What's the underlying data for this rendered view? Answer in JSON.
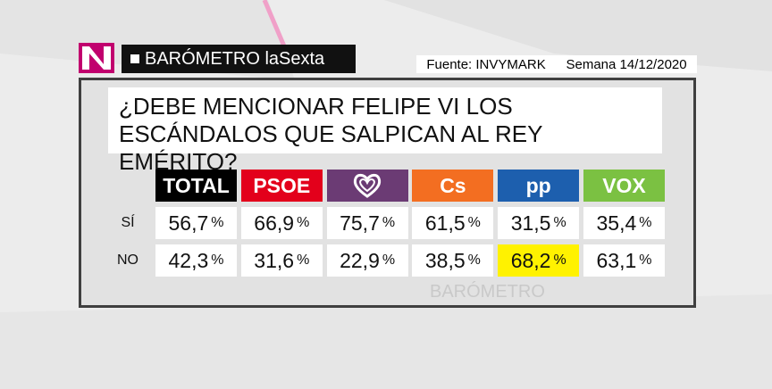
{
  "header": {
    "brand": "BARÓMETRO laSexta",
    "source": "Fuente: INVYMARK",
    "week": "Semana 14/12/2020"
  },
  "question": "¿DEBE MENCIONAR FELIPE VI LOS ESCÁNDALOS QUE SALPICAN AL REY EMÉRITO?",
  "watermark": "BARÓMETRO",
  "table": {
    "columns": [
      "TOTAL",
      "PSOE",
      null,
      "Cs",
      "pp",
      "VOX"
    ],
    "colors": [
      "#000000",
      "#e3001b",
      "#6b3b74",
      "#f36e21",
      "#1d5fae",
      "#7bc142"
    ],
    "unit": "%",
    "rows": [
      {
        "label": "SÍ",
        "values": [
          "56,7",
          "66,9",
          "75,7",
          "61,5",
          "31,5",
          "35,4"
        ]
      },
      {
        "label": "NO",
        "values": [
          "42,3",
          "31,6",
          "22,9",
          "38,5",
          "68,2",
          "63,1"
        ]
      }
    ],
    "highlight": [
      [
        1,
        4
      ]
    ]
  }
}
